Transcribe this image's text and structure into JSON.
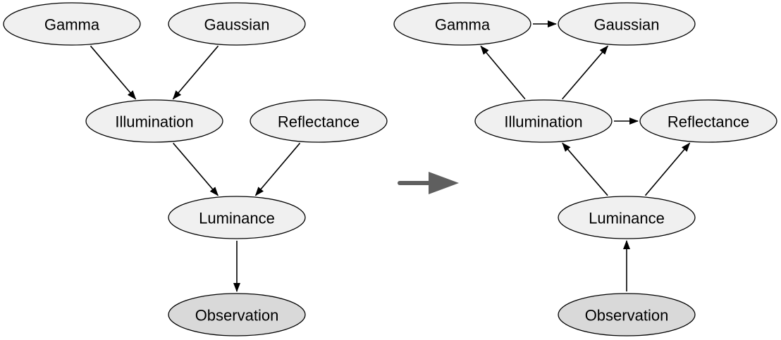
{
  "colors": {
    "node_fill": "#f0f0f0",
    "observed_fill": "#d9d9d9",
    "stroke": "#000000",
    "transition_arrow": "#5f5f5f"
  },
  "graphs": [
    {
      "id": "left-graph",
      "nodes": [
        {
          "id": "gamma",
          "label": "Gamma",
          "observed": false
        },
        {
          "id": "gaussian",
          "label": "Gaussian",
          "observed": false
        },
        {
          "id": "illumination",
          "label": "Illumination",
          "observed": false
        },
        {
          "id": "reflectance",
          "label": "Reflectance",
          "observed": false
        },
        {
          "id": "luminance",
          "label": "Luminance",
          "observed": false
        },
        {
          "id": "observation",
          "label": "Observation",
          "observed": true
        }
      ],
      "edges": [
        {
          "from": "gamma",
          "to": "illumination"
        },
        {
          "from": "gaussian",
          "to": "illumination"
        },
        {
          "from": "illumination",
          "to": "luminance"
        },
        {
          "from": "reflectance",
          "to": "luminance"
        },
        {
          "from": "luminance",
          "to": "observation"
        }
      ]
    },
    {
      "id": "right-graph",
      "nodes": [
        {
          "id": "gamma",
          "label": "Gamma",
          "observed": false
        },
        {
          "id": "gaussian",
          "label": "Gaussian",
          "observed": false
        },
        {
          "id": "illumination",
          "label": "Illumination",
          "observed": false
        },
        {
          "id": "reflectance",
          "label": "Reflectance",
          "observed": false
        },
        {
          "id": "luminance",
          "label": "Luminance",
          "observed": false
        },
        {
          "id": "observation",
          "label": "Observation",
          "observed": true
        }
      ],
      "edges": [
        {
          "from": "gamma",
          "to": "gaussian"
        },
        {
          "from": "illumination",
          "to": "gamma"
        },
        {
          "from": "illumination",
          "to": "gaussian"
        },
        {
          "from": "illumination",
          "to": "reflectance"
        },
        {
          "from": "luminance",
          "to": "illumination"
        },
        {
          "from": "luminance",
          "to": "reflectance"
        },
        {
          "from": "observation",
          "to": "luminance"
        }
      ]
    }
  ]
}
